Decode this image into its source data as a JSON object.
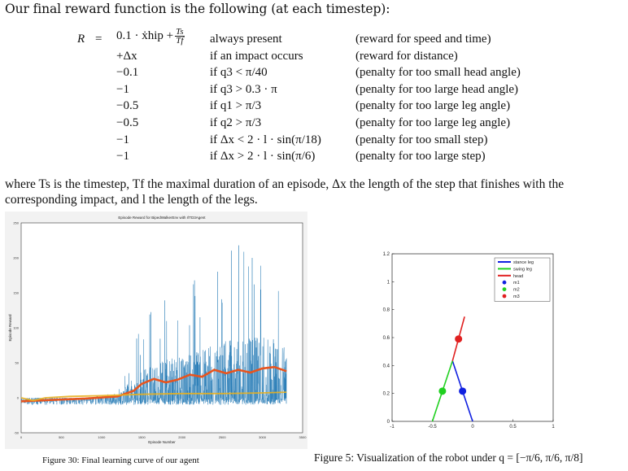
{
  "intro": "Our final reward function is the following (at each timestep):",
  "equation": {
    "lhs": "R",
    "eq": "=",
    "rows": [
      {
        "term": "0.1 · ẋhip +",
        "frac_num": "Ts",
        "frac_den": "Tf",
        "cond": "always present",
        "desc": "(reward for speed and time)"
      },
      {
        "term": "+Δx",
        "cond": "if an impact occurs",
        "desc": "(reward for distance)"
      },
      {
        "term": "−0.1",
        "cond": "if q3 < π/40",
        "desc": "(penalty for too small head angle)"
      },
      {
        "term": "−1",
        "cond": "if q3 > 0.3 · π",
        "desc": "(penalty for too large head angle)"
      },
      {
        "term": "−0.5",
        "cond": "if q1 > π/3",
        "desc": "(penalty for too large leg angle)"
      },
      {
        "term": "−0.5",
        "cond": "if q2 > π/3",
        "desc": "(penalty for too large leg angle)"
      },
      {
        "term": "−1",
        "cond": "if Δx < 2 · l · sin(π/18)",
        "desc": "(penalty for too small step)"
      },
      {
        "term": "−1",
        "cond": "if Δx > 2 · l · sin(π/6)",
        "desc": "(penalty for too large step)"
      }
    ]
  },
  "paragraph": "where Ts is the timestep, Tf the maximal duration of an episode, Δx the length of the step that finishes with the corresponding impact, and l the length of the legs.",
  "figure30": {
    "caption": "Figure 30: Final learning curve of our agent",
    "chart_data": {
      "type": "line",
      "title": "Episode Reward for BipedWalkerEnv with rlTD3Agent",
      "xlabel": "Episode Number",
      "ylabel": "Episode Reward",
      "xlim": [
        0,
        3500
      ],
      "ylim": [
        -50,
        250
      ],
      "xticks": [
        "0",
        "500",
        "1000",
        "1500",
        "2000",
        "2500",
        "3000",
        "3500"
      ],
      "yticks": [
        "-50",
        "0",
        "50",
        "100",
        "150",
        "200",
        "250"
      ],
      "series": [
        {
          "color": "#1f77b4",
          "role": "episode reward",
          "x": [
            0,
            400,
            800,
            1200,
            1400,
            1600,
            1800,
            2000,
            2200,
            2400,
            2600,
            2800,
            3000,
            3200,
            3300
          ],
          "y": [
            -5,
            -2,
            0,
            3,
            30,
            45,
            55,
            60,
            70,
            75,
            85,
            85,
            90,
            85,
            80
          ]
        },
        {
          "color": "#e8541e",
          "role": "average reward",
          "x": [
            0,
            400,
            800,
            1200,
            1400,
            1500,
            1650,
            1800,
            1950,
            2100,
            2250,
            2400,
            2550,
            2700,
            2850,
            3000,
            3150,
            3300
          ],
          "y": [
            -5,
            -3,
            -1,
            2,
            10,
            20,
            27,
            22,
            26,
            33,
            30,
            40,
            35,
            40,
            36,
            42,
            44,
            38
          ]
        },
        {
          "color": "#e8b020",
          "role": "episode Q0",
          "x": [
            0,
            150,
            300,
            600,
            1000,
            1500,
            2000,
            2500,
            3000,
            3300
          ],
          "y": [
            0,
            -4,
            0,
            2,
            3,
            5,
            6,
            6,
            7,
            8
          ]
        }
      ]
    }
  },
  "figure5": {
    "caption": "Figure 5: Visualization of the robot under q = [−π/6, π/6, π/8]",
    "chart_data": {
      "type": "line",
      "xlim": [
        -1,
        1
      ],
      "ylim": [
        0,
        1.2
      ],
      "xticks": [
        "-1",
        "-0.5",
        "0",
        "0.5",
        "1"
      ],
      "yticks": [
        "0",
        "0.2",
        "0.4",
        "0.6",
        "0.8",
        "1",
        "1.2"
      ],
      "legend": [
        "stance leg",
        "swing leg",
        "head",
        "m1",
        "m2",
        "m3"
      ],
      "legend_position": "top-right",
      "series": [
        {
          "name": "stance leg",
          "color": "#1020e0",
          "x": [
            0,
            -0.25
          ],
          "y": [
            0,
            0.433
          ]
        },
        {
          "name": "swing leg",
          "color": "#20d020",
          "x": [
            -0.5,
            -0.25
          ],
          "y": [
            0,
            0.433
          ]
        },
        {
          "name": "head",
          "color": "#e02020",
          "x": [
            -0.25,
            -0.1
          ],
          "y": [
            0.433,
            0.75
          ]
        },
        {
          "name": "m1",
          "color": "#1020e0",
          "x": [
            -0.125
          ],
          "y": [
            0.2165
          ],
          "marker": "dot"
        },
        {
          "name": "m2",
          "color": "#20d020",
          "x": [
            -0.375
          ],
          "y": [
            0.2165
          ],
          "marker": "dot"
        },
        {
          "name": "m3",
          "color": "#e02020",
          "x": [
            -0.175
          ],
          "y": [
            0.59
          ],
          "marker": "dot"
        }
      ]
    }
  }
}
